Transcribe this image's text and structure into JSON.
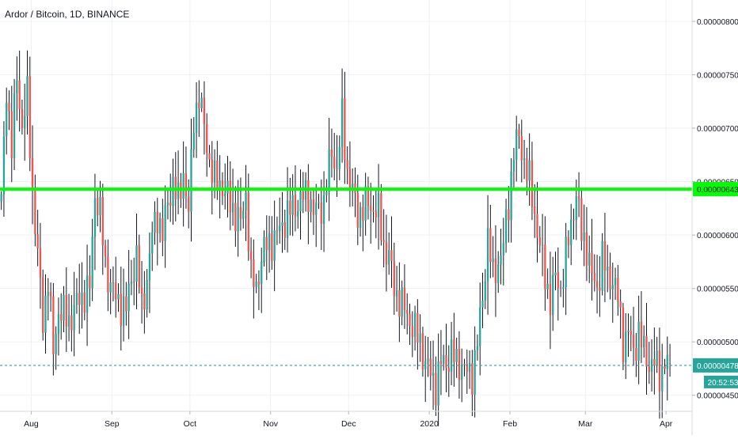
{
  "chart_data": {
    "type": "candlestick",
    "title": "Ardor / Bitcoin, 1D, BINANCE",
    "y_ticks": [
      "0.00000800",
      "0.00000750",
      "0.00000700",
      "0.00000650",
      "0.00000600",
      "0.00000550",
      "0.00000500",
      "0.00000450"
    ],
    "y_tick_values": [
      8e-06,
      7.5e-06,
      7e-06,
      6.5e-06,
      6e-06,
      5.5e-06,
      5e-06,
      4.5e-06
    ],
    "ylim": [
      4.35e-06,
      8.2e-06
    ],
    "x_ticks": [
      {
        "label": "Aug",
        "day": 12
      },
      {
        "label": "Sep",
        "day": 43
      },
      {
        "label": "Oct",
        "day": 73
      },
      {
        "label": "Nov",
        "day": 104
      },
      {
        "label": "Dec",
        "day": 134
      },
      {
        "label": "2020",
        "day": 165
      },
      {
        "label": "Feb",
        "day": 196
      },
      {
        "label": "Mar",
        "day": 225
      },
      {
        "label": "Apr",
        "day": 256
      }
    ],
    "xlim": [
      0,
      266
    ],
    "horizontal_level": {
      "value": 6.43e-06,
      "label": "0.00000643",
      "color": "#00ff00"
    },
    "last_price": {
      "value": 4.78e-06,
      "label": "0.00000478",
      "countdown": "20:52:53",
      "color": "#26a69a"
    },
    "up_color": "#26a69a",
    "down_color": "#ef5350",
    "wick_color": "#131722",
    "grid": true,
    "close_anchors": [
      [
        0,
        6.3
      ],
      [
        2,
        7.4
      ],
      [
        4,
        6.8
      ],
      [
        6,
        7.5
      ],
      [
        8,
        7.0
      ],
      [
        10,
        7.3
      ],
      [
        12,
        6.4
      ],
      [
        14,
        5.8
      ],
      [
        16,
        5.2
      ],
      [
        18,
        5.6
      ],
      [
        20,
        4.9
      ],
      [
        22,
        5.3
      ],
      [
        26,
        5.2
      ],
      [
        30,
        5.4
      ],
      [
        34,
        5.5
      ],
      [
        36,
        6.4
      ],
      [
        38,
        6.2
      ],
      [
        40,
        5.7
      ],
      [
        44,
        5.4
      ],
      [
        48,
        5.3
      ],
      [
        50,
        5.6
      ],
      [
        52,
        5.8
      ],
      [
        54,
        5.3
      ],
      [
        56,
        5.6
      ],
      [
        58,
        6.0
      ],
      [
        60,
        6.2
      ],
      [
        62,
        6.0
      ],
      [
        64,
        6.3
      ],
      [
        66,
        6.5
      ],
      [
        68,
        6.3
      ],
      [
        70,
        6.6
      ],
      [
        72,
        6.2
      ],
      [
        74,
        7.1
      ],
      [
        76,
        7.3
      ],
      [
        78,
        7.0
      ],
      [
        80,
        6.7
      ],
      [
        82,
        6.5
      ],
      [
        84,
        6.5
      ],
      [
        86,
        6.4
      ],
      [
        88,
        6.3
      ],
      [
        90,
        6.2
      ],
      [
        92,
        6.1
      ],
      [
        94,
        6.4
      ],
      [
        96,
        5.6
      ],
      [
        98,
        5.5
      ],
      [
        100,
        5.8
      ],
      [
        102,
        5.9
      ],
      [
        106,
        6.0
      ],
      [
        110,
        6.2
      ],
      [
        114,
        6.3
      ],
      [
        118,
        6.4
      ],
      [
        120,
        6.2
      ],
      [
        124,
        6.3
      ],
      [
        127,
        6.8
      ],
      [
        129,
        6.6
      ],
      [
        131,
        7.1
      ],
      [
        133,
        6.6
      ],
      [
        135,
        6.4
      ],
      [
        137,
        6.2
      ],
      [
        141,
        6.3
      ],
      [
        145,
        6.2
      ],
      [
        147,
        5.9
      ],
      [
        149,
        5.8
      ],
      [
        151,
        5.5
      ],
      [
        153,
        5.4
      ],
      [
        157,
        5.2
      ],
      [
        161,
        5.0
      ],
      [
        163,
        4.8
      ],
      [
        165,
        4.7
      ],
      [
        167,
        4.6
      ],
      [
        169,
        4.8
      ],
      [
        171,
        4.8
      ],
      [
        173,
        4.9
      ],
      [
        175,
        4.8
      ],
      [
        177,
        4.8
      ],
      [
        179,
        4.7
      ],
      [
        181,
        4.7
      ],
      [
        183,
        5.0
      ],
      [
        185,
        5.4
      ],
      [
        187,
        6.0
      ],
      [
        189,
        5.6
      ],
      [
        193,
        5.9
      ],
      [
        195,
        6.3
      ],
      [
        197,
        6.8
      ],
      [
        199,
        6.9
      ],
      [
        201,
        6.7
      ],
      [
        203,
        6.5
      ],
      [
        205,
        6.2
      ],
      [
        207,
        5.9
      ],
      [
        209,
        5.6
      ],
      [
        211,
        5.4
      ],
      [
        213,
        5.6
      ],
      [
        215,
        5.5
      ],
      [
        217,
        5.8
      ],
      [
        219,
        6.1
      ],
      [
        221,
        6.4
      ],
      [
        223,
        6.0
      ],
      [
        225,
        5.9
      ],
      [
        227,
        5.6
      ],
      [
        229,
        5.5
      ],
      [
        231,
        5.8
      ],
      [
        233,
        5.6
      ],
      [
        235,
        5.6
      ],
      [
        237,
        5.4
      ],
      [
        239,
        5.0
      ],
      [
        241,
        5.1
      ],
      [
        243,
        4.9
      ],
      [
        245,
        5.1
      ],
      [
        247,
        4.9
      ],
      [
        249,
        4.8
      ],
      [
        251,
        4.8
      ],
      [
        253,
        4.7
      ],
      [
        255,
        4.8
      ]
    ]
  }
}
